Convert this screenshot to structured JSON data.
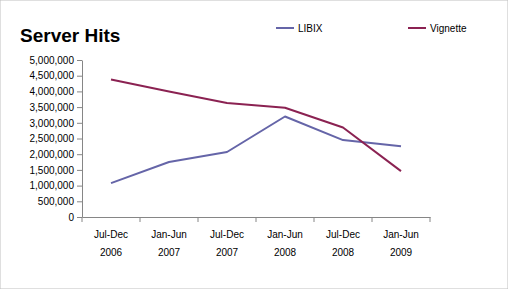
{
  "chart_data": {
    "type": "line",
    "title": "Server Hits",
    "categories": [
      "Jul-Dec 2006",
      "Jan-Jun 2007",
      "Jul-Dec 2007",
      "Jan-Jun 2008",
      "Jul-Dec 2008",
      "Jan-Jun 2009"
    ],
    "series": [
      {
        "name": "LIBIX",
        "color": "#6565a8",
        "values": [
          1080000,
          1750000,
          2070000,
          3200000,
          2450000,
          2250000
        ]
      },
      {
        "name": "Vignette",
        "color": "#8b2252",
        "values": [
          4380000,
          4000000,
          3630000,
          3480000,
          2850000,
          1460000
        ]
      }
    ],
    "ylim": [
      0,
      5000000
    ],
    "yticks": [
      0,
      {
        "value": 500000,
        "label": "500,000"
      },
      {
        "value": 1000000,
        "label": "1,000,000"
      },
      {
        "value": 1500000,
        "label": "1,500,000"
      },
      {
        "value": 2000000,
        "label": "2,000,000"
      },
      {
        "value": 2500000,
        "label": "2,500,000"
      },
      {
        "value": 3000000,
        "label": "3,000,000"
      },
      {
        "value": 3500000,
        "label": "3,500,000"
      },
      {
        "value": 4000000,
        "label": "4,000,000"
      },
      {
        "value": 4500000,
        "label": "4,500,000"
      },
      {
        "value": 5000000,
        "label": "5,000,000"
      }
    ],
    "grid": false,
    "legend": "top"
  }
}
